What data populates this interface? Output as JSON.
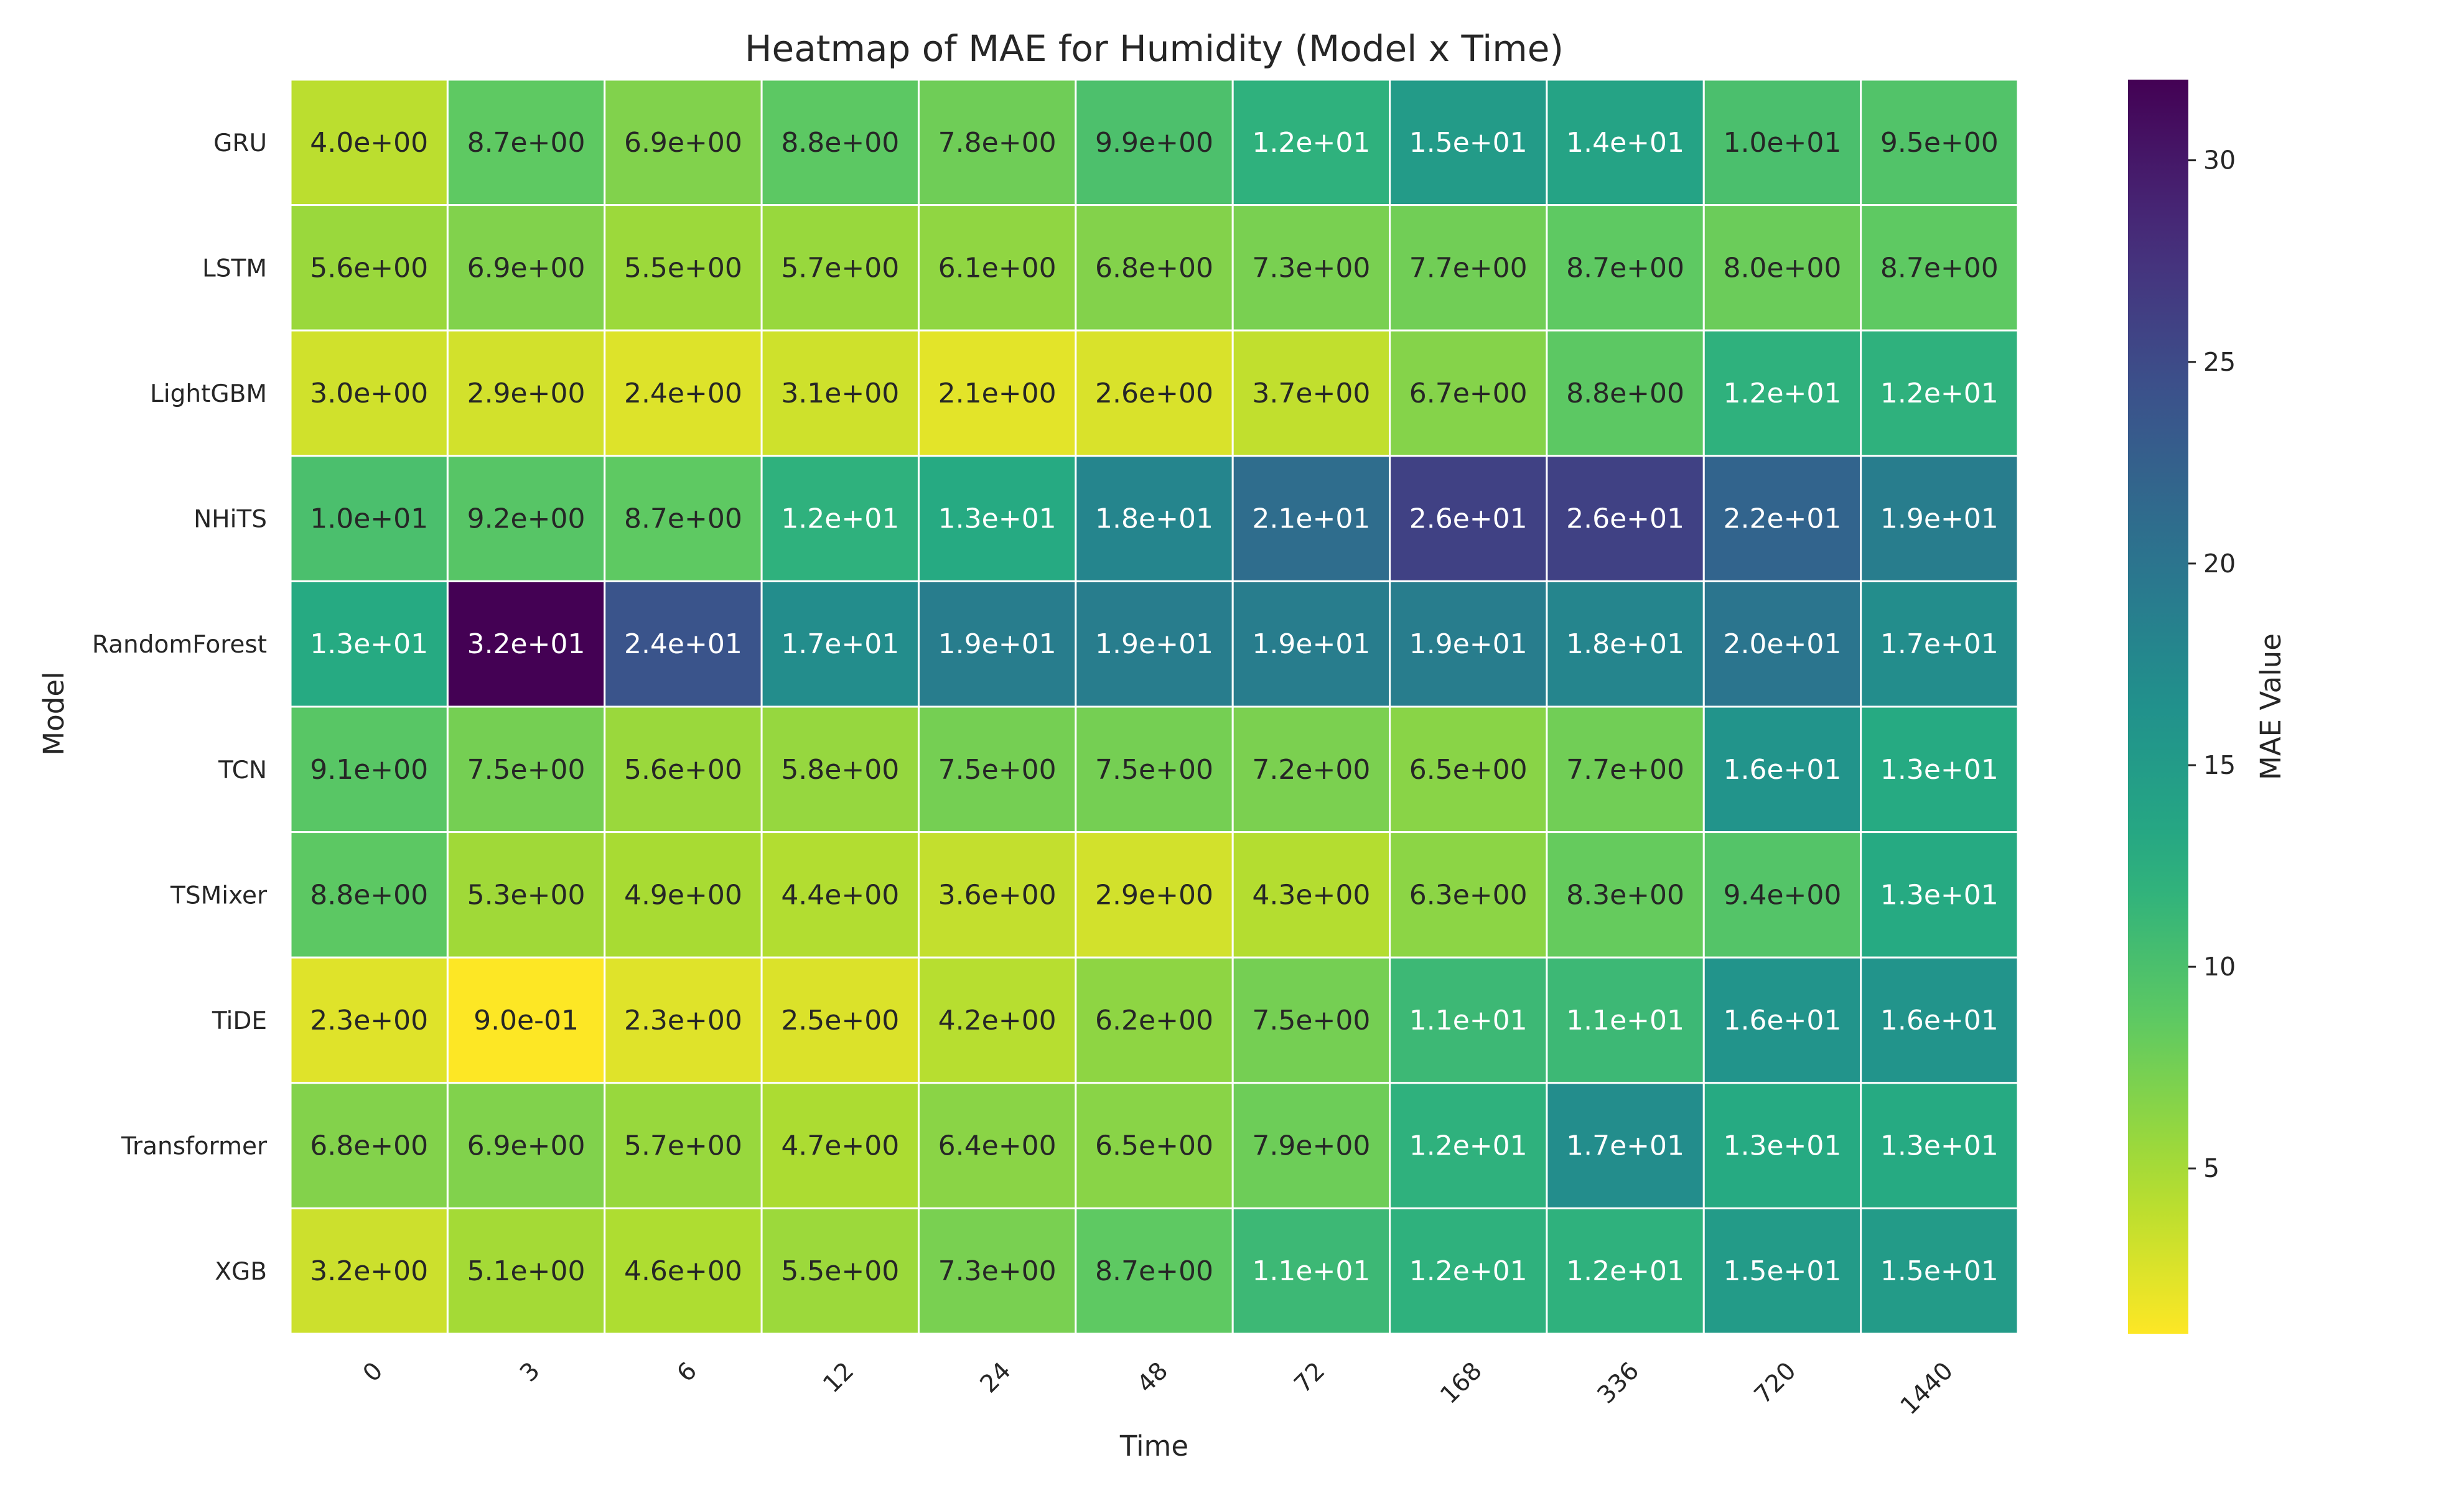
{
  "chart_data": {
    "type": "heatmap",
    "title": "Heatmap of MAE for Humidity (Model x Time)",
    "xlabel": "Time",
    "ylabel": "Model",
    "colorbar_label": "MAE Value",
    "colormap": "viridis_r",
    "x": [
      "0",
      "3",
      "6",
      "12",
      "24",
      "48",
      "72",
      "168",
      "336",
      "720",
      "1440"
    ],
    "y": [
      "GRU",
      "LSTM",
      "LightGBM",
      "NHiTS",
      "RandomForest",
      "TCN",
      "TSMixer",
      "TiDE",
      "Transformer",
      "XGB"
    ],
    "values": [
      [
        4.0,
        8.7,
        6.9,
        8.8,
        7.8,
        9.9,
        12,
        15,
        14,
        10,
        9.5
      ],
      [
        5.6,
        6.9,
        5.5,
        5.7,
        6.1,
        6.8,
        7.3,
        7.7,
        8.7,
        8.0,
        8.7
      ],
      [
        3.0,
        2.9,
        2.4,
        3.1,
        2.1,
        2.6,
        3.7,
        6.7,
        8.8,
        12,
        12
      ],
      [
        10,
        9.2,
        8.7,
        12,
        13,
        18,
        21,
        26,
        26,
        22,
        19
      ],
      [
        13,
        32,
        24,
        17,
        19,
        19,
        19,
        19,
        18,
        20,
        17
      ],
      [
        9.1,
        7.5,
        5.6,
        5.8,
        7.5,
        7.5,
        7.2,
        6.5,
        7.7,
        16,
        13
      ],
      [
        8.8,
        5.3,
        4.9,
        4.4,
        3.6,
        2.9,
        4.3,
        6.3,
        8.3,
        9.4,
        13
      ],
      [
        2.3,
        0.9,
        2.3,
        2.5,
        4.2,
        6.2,
        7.5,
        11,
        11,
        16,
        16
      ],
      [
        6.8,
        6.9,
        5.7,
        4.7,
        6.4,
        6.5,
        7.9,
        12,
        17,
        13,
        13
      ],
      [
        3.2,
        5.1,
        4.6,
        5.5,
        7.3,
        8.7,
        11,
        12,
        12,
        15,
        15
      ]
    ],
    "cell_labels": [
      [
        "4.0e+00",
        "8.7e+00",
        "6.9e+00",
        "8.8e+00",
        "7.8e+00",
        "9.9e+00",
        "1.2e+01",
        "1.5e+01",
        "1.4e+01",
        "1.0e+01",
        "9.5e+00"
      ],
      [
        "5.6e+00",
        "6.9e+00",
        "5.5e+00",
        "5.7e+00",
        "6.1e+00",
        "6.8e+00",
        "7.3e+00",
        "7.7e+00",
        "8.7e+00",
        "8.0e+00",
        "8.7e+00"
      ],
      [
        "3.0e+00",
        "2.9e+00",
        "2.4e+00",
        "3.1e+00",
        "2.1e+00",
        "2.6e+00",
        "3.7e+00",
        "6.7e+00",
        "8.8e+00",
        "1.2e+01",
        "1.2e+01"
      ],
      [
        "1.0e+01",
        "9.2e+00",
        "8.7e+00",
        "1.2e+01",
        "1.3e+01",
        "1.8e+01",
        "2.1e+01",
        "2.6e+01",
        "2.6e+01",
        "2.2e+01",
        "1.9e+01"
      ],
      [
        "1.3e+01",
        "3.2e+01",
        "2.4e+01",
        "1.7e+01",
        "1.9e+01",
        "1.9e+01",
        "1.9e+01",
        "1.9e+01",
        "1.8e+01",
        "2.0e+01",
        "1.7e+01"
      ],
      [
        "9.1e+00",
        "7.5e+00",
        "5.6e+00",
        "5.8e+00",
        "7.5e+00",
        "7.5e+00",
        "7.2e+00",
        "6.5e+00",
        "7.7e+00",
        "1.6e+01",
        "1.3e+01"
      ],
      [
        "8.8e+00",
        "5.3e+00",
        "4.9e+00",
        "4.4e+00",
        "3.6e+00",
        "2.9e+00",
        "4.3e+00",
        "6.3e+00",
        "8.3e+00",
        "9.4e+00",
        "1.3e+01"
      ],
      [
        "2.3e+00",
        "9.0e-01",
        "2.3e+00",
        "2.5e+00",
        "4.2e+00",
        "6.2e+00",
        "7.5e+00",
        "1.1e+01",
        "1.1e+01",
        "1.6e+01",
        "1.6e+01"
      ],
      [
        "6.8e+00",
        "6.9e+00",
        "5.7e+00",
        "4.7e+00",
        "6.4e+00",
        "6.5e+00",
        "7.9e+00",
        "1.2e+01",
        "1.7e+01",
        "1.3e+01",
        "1.3e+01"
      ],
      [
        "3.2e+00",
        "5.1e+00",
        "4.6e+00",
        "5.5e+00",
        "7.3e+00",
        "8.7e+00",
        "1.1e+01",
        "1.2e+01",
        "1.2e+01",
        "1.5e+01",
        "1.5e+01"
      ]
    ],
    "color_range": [
      0.9,
      32
    ],
    "colorbar_ticks": [
      5,
      10,
      15,
      20,
      25,
      30
    ],
    "grid": false,
    "cell_border_color": "#ffffff"
  }
}
